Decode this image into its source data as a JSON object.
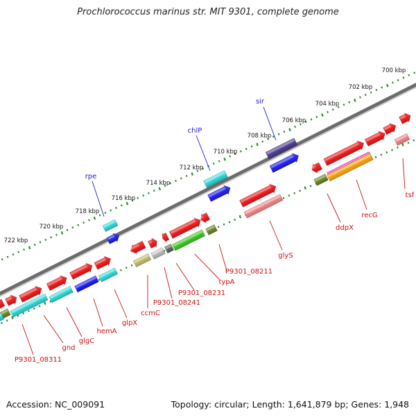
{
  "title": "Prochlorococcus marinus str. MIT 9301, complete genome",
  "footer": {
    "accession": "Accession: NC_009091",
    "topology": "Topology: circular; Length: 1,641,879 bp; Genes: 1,948"
  },
  "colors": {
    "backbone": "#8a8a8a",
    "tick": "#2a8a2a",
    "top_label": "#1a1acc",
    "bottom_label": "#cc1111"
  },
  "kbp_labels": [
    "700 kbp",
    "702 kbp",
    "704 kbp",
    "706 kbp",
    "708 kbp",
    "710 kbp",
    "712 kbp",
    "714 kbp",
    "716 kbp",
    "718 kbp",
    "720 kbp",
    "722 kbp"
  ],
  "top_gene_labels": [
    "sir",
    "chlP",
    "rpe"
  ],
  "bottom_gene_labels": [
    "tsf",
    "recG",
    "ddpX",
    "glyS",
    "P9301_08211",
    "typA",
    "P9301_08231",
    "P9301_08241",
    "ccmC",
    "glpX",
    "hemA",
    "glgC",
    "gnd",
    "P9301_08311"
  ]
}
